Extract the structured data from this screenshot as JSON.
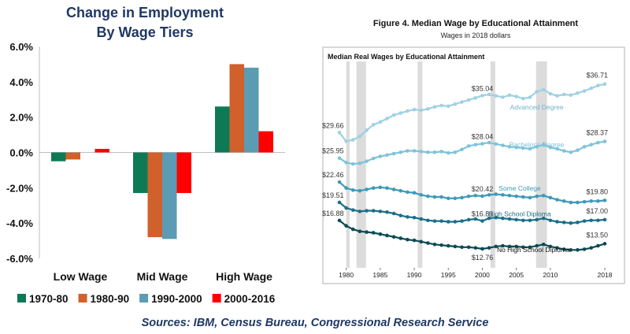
{
  "chart_data": [
    {
      "type": "bar",
      "title": [
        "Change in Employment",
        "By Wage Tiers"
      ],
      "categories": [
        "Low Wage",
        "Mid Wage",
        "High Wage"
      ],
      "ylim": [
        -6.0,
        6.0
      ],
      "yticks": [
        6.0,
        4.0,
        2.0,
        0.0,
        -2.0,
        -4.0,
        -6.0
      ],
      "ytick_labels": [
        "6.0%",
        "4.0%",
        "2.0%",
        "0.0%",
        "-2.0%",
        "-4.0%",
        "-6.0%"
      ],
      "unit": "%",
      "grid": false,
      "legend_position": "bottom",
      "series": [
        {
          "name": "1970-80",
          "color": "#0e7a55",
          "values": [
            -0.5,
            -2.3,
            2.6
          ]
        },
        {
          "name": "1980-90",
          "color": "#d0602c",
          "values": [
            -0.4,
            -4.8,
            5.0
          ]
        },
        {
          "name": "1990-2000",
          "color": "#5b9bb3",
          "values": [
            0.0,
            -4.9,
            4.8
          ]
        },
        {
          "name": "2000-2016",
          "color": "#ff0000",
          "values": [
            0.2,
            -2.3,
            1.2
          ]
        }
      ]
    },
    {
      "type": "line",
      "title": "Figure 4. Median Wage by Educational Attainment",
      "subtitle": "Wages in 2018 dollars",
      "inner_title": "Median Real Wages by Educational Attainment",
      "xlim": [
        1979,
        2018
      ],
      "xticks": [
        1980,
        1985,
        1990,
        1995,
        2000,
        2005,
        2010,
        2018
      ],
      "ylim": [
        10,
        40
      ],
      "recession_bands": [
        [
          1980.0,
          1980.5
        ],
        [
          1981.5,
          1982.9
        ],
        [
          1990.5,
          1991.2
        ],
        [
          2001.2,
          2001.9
        ],
        [
          2007.9,
          2009.5
        ]
      ],
      "series": [
        {
          "name": "Advanced Degree",
          "color": "#9fd1e2",
          "x": [
            1979,
            1980,
            1981,
            1982,
            1983,
            1984,
            1985,
            1986,
            1987,
            1988,
            1989,
            1990,
            1991,
            1992,
            1993,
            1994,
            1995,
            1996,
            1997,
            1998,
            1999,
            2000,
            2001,
            2002,
            2003,
            2004,
            2005,
            2006,
            2007,
            2008,
            2009,
            2010,
            2011,
            2012,
            2013,
            2014,
            2015,
            2016,
            2017,
            2018
          ],
          "values": [
            29.66,
            28.4,
            28.6,
            29.1,
            30.0,
            30.8,
            31.2,
            31.7,
            32.2,
            32.5,
            32.8,
            33.0,
            32.9,
            33.1,
            33.4,
            33.6,
            33.5,
            33.8,
            34.1,
            34.4,
            34.7,
            35.04,
            35.2,
            35.0,
            34.8,
            35.1,
            34.9,
            34.6,
            34.8,
            35.6,
            35.9,
            35.3,
            35.0,
            35.2,
            35.1,
            35.4,
            35.7,
            36.1,
            36.5,
            36.71
          ],
          "labels": [
            {
              "x": 1979,
              "text": "$29.66"
            },
            {
              "x": 2000,
              "text": "$35.04"
            },
            {
              "x": 2018,
              "text": "$36.71"
            }
          ]
        },
        {
          "name": "Bachelor's Degree",
          "color": "#7fc3d9",
          "x": [
            1979,
            1980,
            1981,
            1982,
            1983,
            1984,
            1985,
            1986,
            1987,
            1988,
            1989,
            1990,
            1991,
            1992,
            1993,
            1994,
            1995,
            1996,
            1997,
            1998,
            1999,
            2000,
            2001,
            2002,
            2003,
            2004,
            2005,
            2006,
            2007,
            2008,
            2009,
            2010,
            2011,
            2012,
            2013,
            2014,
            2015,
            2016,
            2017,
            2018
          ],
          "values": [
            25.95,
            25.3,
            25.1,
            25.2,
            25.5,
            25.9,
            26.2,
            26.4,
            26.6,
            26.8,
            27.0,
            27.0,
            26.9,
            26.8,
            26.8,
            26.9,
            26.7,
            26.8,
            27.2,
            27.7,
            27.9,
            28.04,
            28.2,
            28.0,
            27.8,
            27.6,
            27.5,
            27.4,
            27.3,
            27.6,
            27.9,
            27.5,
            27.3,
            27.0,
            26.8,
            27.1,
            27.6,
            27.9,
            28.2,
            28.37
          ],
          "labels": [
            {
              "x": 1979,
              "text": "$25.95"
            },
            {
              "x": 2000,
              "text": "$28.04"
            },
            {
              "x": 2018,
              "text": "$28.37"
            }
          ]
        },
        {
          "name": "Some College",
          "color": "#3e9ab8",
          "x": [
            1979,
            1980,
            1981,
            1982,
            1983,
            1984,
            1985,
            1986,
            1987,
            1988,
            1989,
            1990,
            1991,
            1992,
            1993,
            1994,
            1995,
            1996,
            1997,
            1998,
            1999,
            2000,
            2001,
            2002,
            2003,
            2004,
            2005,
            2006,
            2007,
            2008,
            2009,
            2010,
            2011,
            2012,
            2013,
            2014,
            2015,
            2016,
            2017,
            2018
          ],
          "values": [
            22.46,
            21.6,
            21.3,
            21.2,
            21.4,
            21.6,
            21.7,
            21.6,
            21.4,
            21.2,
            21.0,
            20.9,
            20.6,
            20.4,
            20.3,
            20.3,
            20.1,
            20.1,
            20.2,
            20.4,
            20.5,
            20.42,
            20.6,
            20.7,
            20.6,
            20.5,
            20.4,
            20.3,
            20.2,
            20.4,
            20.5,
            20.2,
            19.9,
            19.7,
            19.5,
            19.5,
            19.6,
            19.7,
            19.7,
            19.8
          ],
          "labels": [
            {
              "x": 1979,
              "text": "$22.46"
            },
            {
              "x": 2000,
              "text": "$20.42"
            },
            {
              "x": 2018,
              "text": "$19.80"
            }
          ]
        },
        {
          "name": "High School Diploma",
          "color": "#1b6f8a",
          "x": [
            1979,
            1980,
            1981,
            1982,
            1983,
            1984,
            1985,
            1986,
            1987,
            1988,
            1989,
            1990,
            1991,
            1992,
            1993,
            1994,
            1995,
            1996,
            1997,
            1998,
            1999,
            2000,
            2001,
            2002,
            2003,
            2004,
            2005,
            2006,
            2007,
            2008,
            2009,
            2010,
            2011,
            2012,
            2013,
            2014,
            2015,
            2016,
            2017,
            2018
          ],
          "values": [
            19.51,
            18.7,
            18.4,
            18.2,
            18.3,
            18.3,
            18.2,
            18.1,
            17.9,
            17.6,
            17.4,
            17.3,
            17.1,
            16.9,
            16.8,
            16.8,
            16.7,
            16.7,
            16.8,
            17.0,
            17.1,
            16.81,
            17.2,
            17.3,
            17.2,
            17.1,
            17.0,
            16.9,
            16.9,
            17.0,
            17.2,
            16.9,
            16.7,
            16.6,
            16.5,
            16.6,
            16.8,
            16.9,
            16.9,
            17.0
          ],
          "labels": [
            {
              "x": 1979,
              "text": "$19.51"
            },
            {
              "x": 2000,
              "text": "$16.81"
            },
            {
              "x": 2018,
              "text": "$17.00"
            }
          ]
        },
        {
          "name": "No High School Diploma",
          "color": "#0c4a55",
          "x": [
            1979,
            1980,
            1981,
            1982,
            1983,
            1984,
            1985,
            1986,
            1987,
            1988,
            1989,
            1990,
            1991,
            1992,
            1993,
            1994,
            1995,
            1996,
            1997,
            1998,
            1999,
            2000,
            2001,
            2002,
            2003,
            2004,
            2005,
            2006,
            2007,
            2008,
            2009,
            2010,
            2011,
            2012,
            2013,
            2014,
            2015,
            2016,
            2017,
            2018
          ],
          "values": [
            16.88,
            16.1,
            15.6,
            15.3,
            15.2,
            15.1,
            14.9,
            14.7,
            14.5,
            14.3,
            14.1,
            14.0,
            13.8,
            13.6,
            13.4,
            13.3,
            13.2,
            13.1,
            13.0,
            13.0,
            12.9,
            12.76,
            12.9,
            13.1,
            13.2,
            13.1,
            13.1,
            13.0,
            13.0,
            13.2,
            13.4,
            13.1,
            12.9,
            12.7,
            12.6,
            12.6,
            12.7,
            12.9,
            13.2,
            13.5
          ],
          "labels": [
            {
              "x": 1979,
              "text": "$16.88"
            },
            {
              "x": 2000,
              "text": "$12.76"
            },
            {
              "x": 2018,
              "text": "$13.50"
            }
          ]
        }
      ]
    }
  ],
  "source": "Sources: IBM, Census Bureau, Congressional Research Service"
}
